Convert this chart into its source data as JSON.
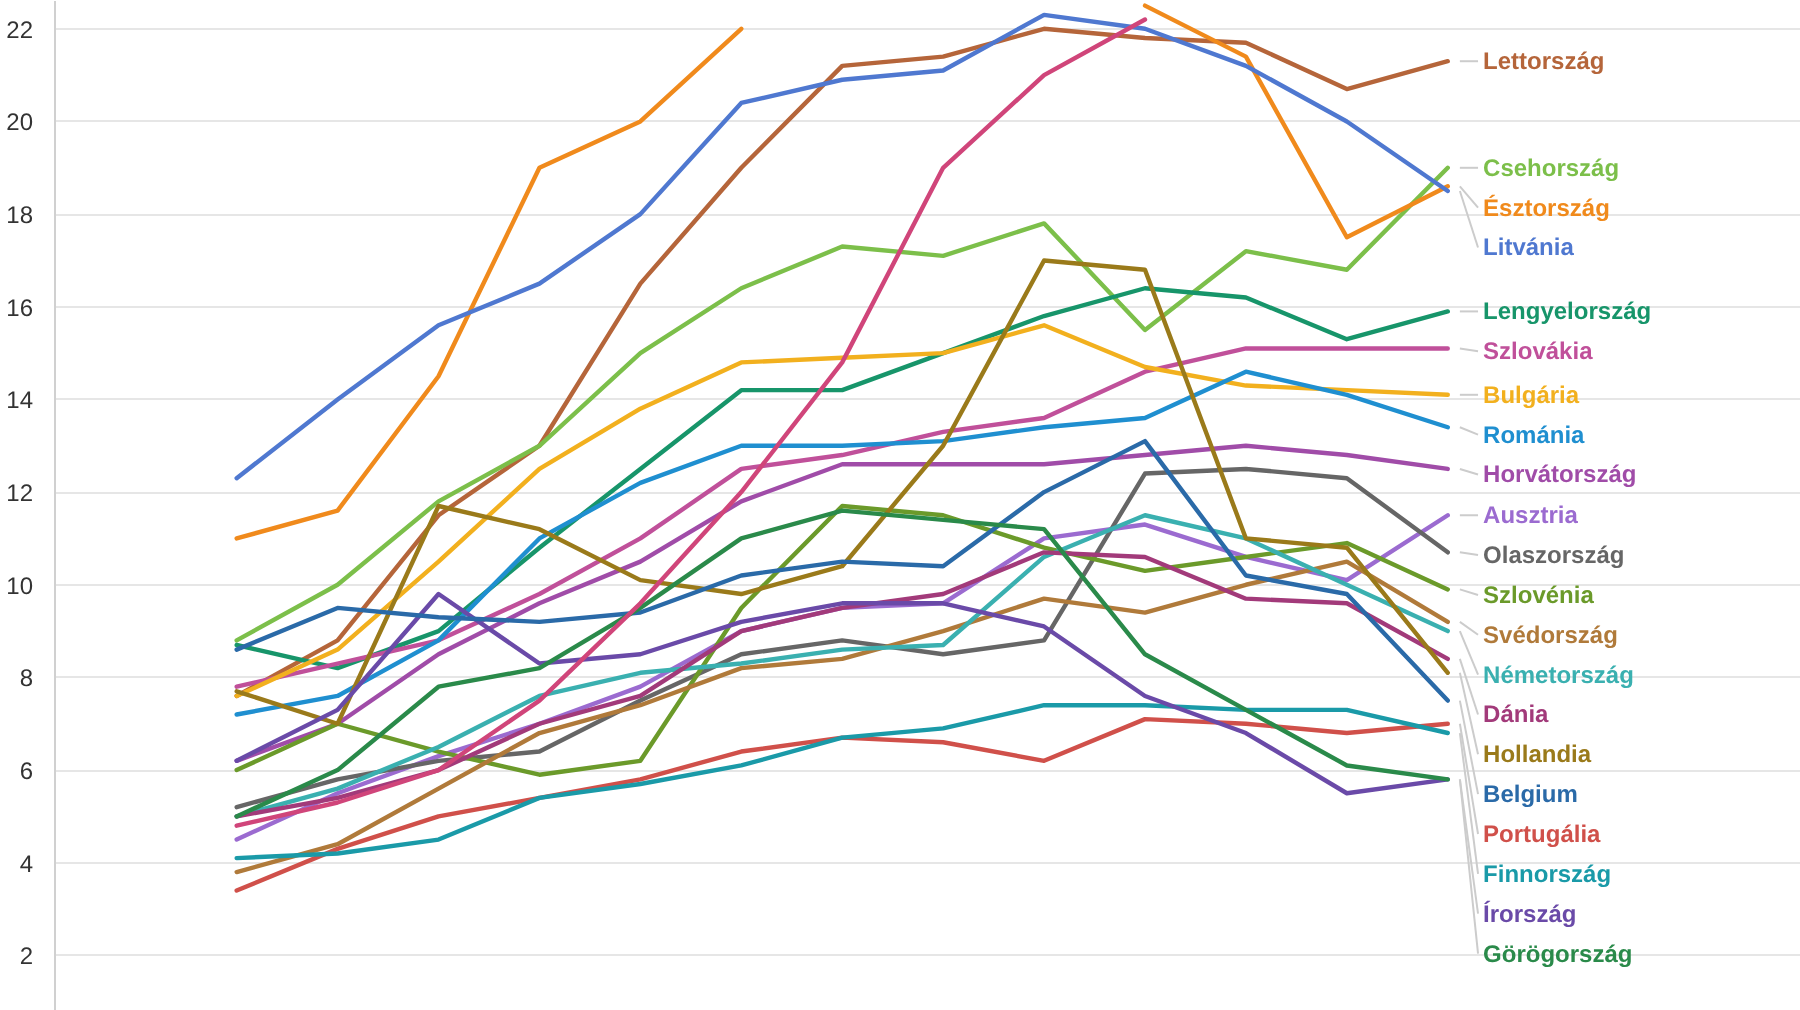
{
  "chart_data": {
    "type": "line",
    "categories": [
      null,
      null,
      null,
      null,
      null,
      null,
      null,
      null,
      null,
      null,
      null,
      null,
      null
    ],
    "ylim": [
      0.8,
      22.6
    ],
    "yticks": [
      2,
      4,
      6,
      8,
      10,
      12,
      14,
      16,
      18,
      20,
      22
    ],
    "grid": "y",
    "legend": "right",
    "tick_labels": "y",
    "marker": "none",
    "line_style": "solid",
    "series": [
      {
        "name": "Lettország",
        "color": "#b5653a",
        "values": [
          7.6,
          8.8,
          11.5,
          13.0,
          16.5,
          19.0,
          21.2,
          21.4,
          22.0,
          21.8,
          21.7,
          20.7,
          21.3
        ]
      },
      {
        "name": "Csehország",
        "color": "#7cbf4a",
        "values": [
          8.8,
          10.0,
          11.8,
          13.0,
          15.0,
          16.4,
          17.3,
          17.1,
          17.8,
          15.5,
          17.2,
          16.8,
          19.0
        ]
      },
      {
        "name": "Észtország",
        "color": "#f08a1c",
        "values": [
          11.0,
          11.6,
          14.5,
          19.0,
          20.0,
          22.0,
          null,
          null,
          null,
          22.5,
          21.4,
          17.5,
          18.6
        ]
      },
      {
        "name": "Litvánia",
        "color": "#4f78d0",
        "values": [
          12.3,
          14.0,
          15.6,
          16.5,
          18.0,
          20.4,
          20.9,
          21.1,
          22.3,
          22.0,
          21.2,
          20.0,
          18.5
        ]
      },
      {
        "name": "Lengyelország",
        "color": "#17956a",
        "values": [
          8.7,
          8.2,
          9.0,
          10.8,
          12.5,
          14.2,
          14.2,
          15.0,
          15.8,
          16.4,
          16.2,
          15.3,
          15.9
        ]
      },
      {
        "name": "Szlovákia",
        "color": "#c0509a",
        "values": [
          7.8,
          8.3,
          8.8,
          9.8,
          11.0,
          12.5,
          12.8,
          13.3,
          13.6,
          14.6,
          15.1,
          15.1,
          15.1
        ]
      },
      {
        "name": "Bulgária",
        "color": "#f2b01e",
        "values": [
          7.6,
          8.6,
          10.5,
          12.5,
          13.8,
          14.8,
          14.9,
          15.0,
          15.6,
          14.7,
          14.3,
          14.2,
          14.1
        ]
      },
      {
        "name": "Románia",
        "color": "#1f8fd0",
        "values": [
          7.2,
          7.6,
          8.8,
          11.0,
          12.2,
          13.0,
          13.0,
          13.1,
          13.4,
          13.6,
          14.6,
          14.1,
          13.4
        ]
      },
      {
        "name": "Horvátország",
        "color": "#a04ca8",
        "values": [
          6.2,
          7.0,
          8.5,
          9.6,
          10.5,
          11.8,
          12.6,
          12.6,
          12.6,
          12.8,
          13.0,
          12.8,
          12.5
        ]
      },
      {
        "name": "Ausztria",
        "color": "#9b6bd0",
        "values": [
          4.5,
          5.5,
          6.3,
          7.0,
          7.8,
          9.0,
          9.5,
          9.6,
          11.0,
          11.3,
          10.6,
          10.1,
          11.5
        ]
      },
      {
        "name": "Olaszország",
        "color": "#666666",
        "values": [
          5.2,
          5.8,
          6.2,
          6.4,
          7.5,
          8.5,
          8.8,
          8.5,
          8.8,
          12.4,
          12.5,
          12.3,
          10.7
        ]
      },
      {
        "name": "Szlovénia",
        "color": "#6b9a2a",
        "values": [
          6.0,
          7.0,
          6.4,
          5.9,
          6.2,
          9.5,
          11.7,
          11.5,
          10.8,
          10.3,
          10.6,
          10.9,
          9.9
        ]
      },
      {
        "name": "Svédország",
        "color": "#b07a3a",
        "values": [
          3.8,
          4.4,
          5.6,
          6.8,
          7.4,
          8.2,
          8.4,
          9.0,
          9.7,
          9.4,
          10.0,
          10.5,
          9.2
        ]
      },
      {
        "name": "Németország",
        "color": "#3ab0b0",
        "values": [
          5.0,
          5.6,
          6.5,
          7.6,
          8.1,
          8.3,
          8.6,
          8.7,
          10.6,
          11.5,
          11.0,
          10.0,
          9.0
        ]
      },
      {
        "name": "Portugália",
        "color": "#d0504a",
        "values": [
          3.4,
          4.3,
          5.0,
          5.4,
          5.8,
          6.4,
          6.7,
          6.6,
          6.2,
          7.1,
          7.0,
          6.8,
          7.0
        ]
      },
      {
        "name": "Dánia",
        "color": "#a23a7a",
        "values": [
          5.0,
          5.4,
          6.0,
          7.0,
          7.6,
          9.0,
          9.5,
          9.8,
          10.7,
          10.6,
          9.7,
          9.6,
          8.4
        ]
      },
      {
        "name": "Hollandia",
        "color": "#9a7a1a",
        "values": [
          7.7,
          7.0,
          11.7,
          11.2,
          10.1,
          9.8,
          10.4,
          13.0,
          17.0,
          16.8,
          11.0,
          10.8,
          8.1
        ]
      },
      {
        "name": "Finnország",
        "color": "#1a9aa8",
        "values": [
          4.1,
          4.2,
          4.5,
          5.4,
          5.7,
          6.1,
          6.7,
          6.9,
          7.4,
          7.4,
          7.3,
          7.3,
          6.8
        ]
      },
      {
        "name": "Írország",
        "color": "#6a4aa8",
        "values": [
          6.2,
          7.3,
          9.8,
          8.3,
          8.5,
          9.2,
          9.6,
          9.6,
          9.1,
          7.6,
          6.8,
          5.5,
          5.8
        ]
      },
      {
        "name": "Belgium",
        "color": "#2a6aa8",
        "values": [
          8.6,
          9.5,
          9.3,
          9.2,
          9.4,
          10.2,
          10.5,
          10.4,
          12.0,
          13.1,
          10.2,
          9.8,
          7.5
        ]
      },
      {
        "name": "Görögország",
        "color": "#2a8a4a",
        "values": [
          5.0,
          6.0,
          7.8,
          8.2,
          9.5,
          11.0,
          11.6,
          11.4,
          11.2,
          8.5,
          7.3,
          6.1,
          5.8
        ]
      },
      {
        "color": "#d0457a",
        "values": [
          4.8,
          5.3,
          6.0,
          7.5,
          9.6,
          12.0,
          14.8,
          19.0,
          21.0,
          22.2,
          null,
          null,
          null
        ]
      }
    ]
  }
}
